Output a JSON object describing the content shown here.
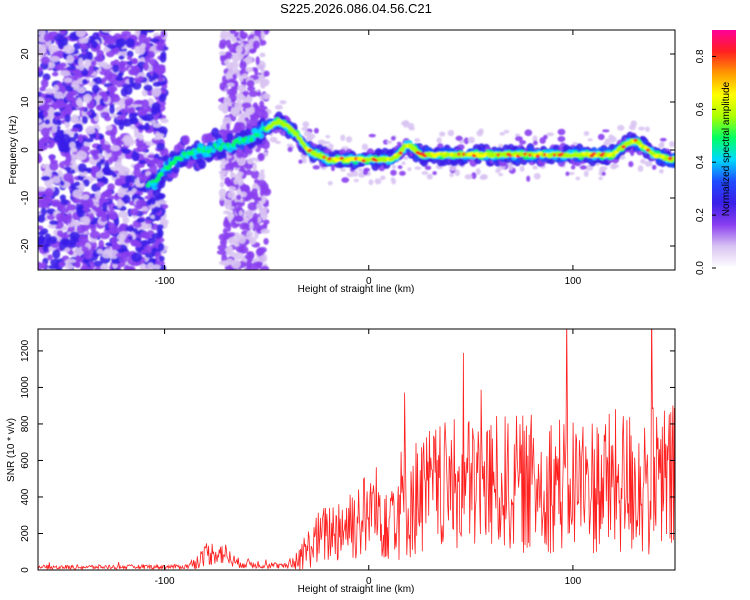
{
  "title": "S225.2026.086.04.56.C21",
  "chart_data": [
    {
      "type": "heatmap",
      "title": "S225.2026.086.04.56.C21",
      "xlabel": "Height of straight line (km)",
      "ylabel": "Frequency (Hz)",
      "xlim": [
        -162,
        150
      ],
      "ylim": [
        -25,
        25
      ],
      "xticks": [
        -100,
        0,
        100
      ],
      "xtick_labels": [
        "-100",
        "0",
        "100"
      ],
      "yticks": [
        -20,
        -10,
        0,
        10,
        20
      ],
      "ytick_labels": [
        "-20",
        "-10",
        "0",
        "10",
        "20"
      ],
      "colorbar": {
        "label": "Normalized spectral amplitude",
        "range": [
          0,
          0.9
        ],
        "ticks": [
          0,
          0.2,
          0.4,
          0.6,
          0.8
        ],
        "tick_labels": [
          "0.0",
          "0.2",
          "0.4",
          "0.6",
          "0.8"
        ],
        "colormap": [
          "#ffffff",
          "#d9c4f2",
          "#8a3ff0",
          "#3a1fe8",
          "#1f4bff",
          "#00d8ff",
          "#00ff66",
          "#aaff00",
          "#ffff00",
          "#ff9a00",
          "#ff2020",
          "#ff0099"
        ]
      },
      "ridge": {
        "x": [
          -105,
          -100,
          -90,
          -80,
          -70,
          -60,
          -52,
          -48,
          -44,
          -40,
          -35,
          -30,
          -25,
          -20,
          -15,
          -10,
          -5,
          0,
          5,
          10,
          15,
          18,
          20,
          25,
          30,
          40,
          50,
          60,
          70,
          80,
          90,
          100,
          110,
          120,
          125,
          130,
          140,
          148
        ],
        "y": [
          -7,
          -4,
          -1,
          0,
          1,
          2,
          4,
          5,
          6,
          5,
          3,
          0,
          -1,
          -2,
          -2,
          -2,
          -2,
          -2,
          -2,
          -2,
          -1,
          1,
          1,
          -1,
          -1,
          -1,
          -1,
          -1,
          -1,
          -1,
          -1,
          -1,
          -1,
          -1,
          1,
          2,
          -1,
          -2
        ]
      }
    },
    {
      "type": "line",
      "xlabel": "Height of straight line (km)",
      "ylabel": "SNR (10 * v/v)",
      "xlim": [
        -162,
        150
      ],
      "ylim": [
        0,
        1320
      ],
      "xticks": [
        -100,
        0,
        100
      ],
      "xtick_labels": [
        "-100",
        "0",
        "100"
      ],
      "yticks": [
        0,
        200,
        400,
        600,
        800,
        1000,
        1200
      ],
      "ytick_labels": [
        "0",
        "200",
        "400",
        "600",
        "800",
        "1000",
        "1200"
      ],
      "color": "#ff2020",
      "envelope": {
        "x": [
          -162,
          -90,
          -85,
          -80,
          -75,
          -70,
          -65,
          -40,
          -35,
          -25,
          -10,
          0,
          10,
          20,
          30,
          50,
          70,
          90,
          110,
          130,
          150
        ],
        "mean": [
          15,
          18,
          40,
          80,
          100,
          85,
          40,
          20,
          60,
          170,
          260,
          300,
          340,
          380,
          440,
          470,
          470,
          480,
          470,
          480,
          480
        ],
        "amp": [
          12,
          12,
          35,
          60,
          70,
          60,
          30,
          15,
          70,
          150,
          220,
          250,
          300,
          330,
          350,
          380,
          380,
          390,
          390,
          420,
          440
        ]
      }
    }
  ]
}
